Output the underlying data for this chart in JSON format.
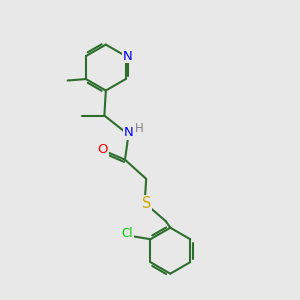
{
  "background_color": "#e8e8e8",
  "bond_color": "#2d6e2d",
  "atom_colors": {
    "N": "#0000ff",
    "O": "#ff0000",
    "S": "#ccaa00",
    "Cl": "#00cc00",
    "H": "#808080",
    "C": "#2d6e2d"
  },
  "bond_width": 1.5,
  "font_size": 8.5,
  "fig_size": [
    3.0,
    3.0
  ],
  "dpi": 100
}
